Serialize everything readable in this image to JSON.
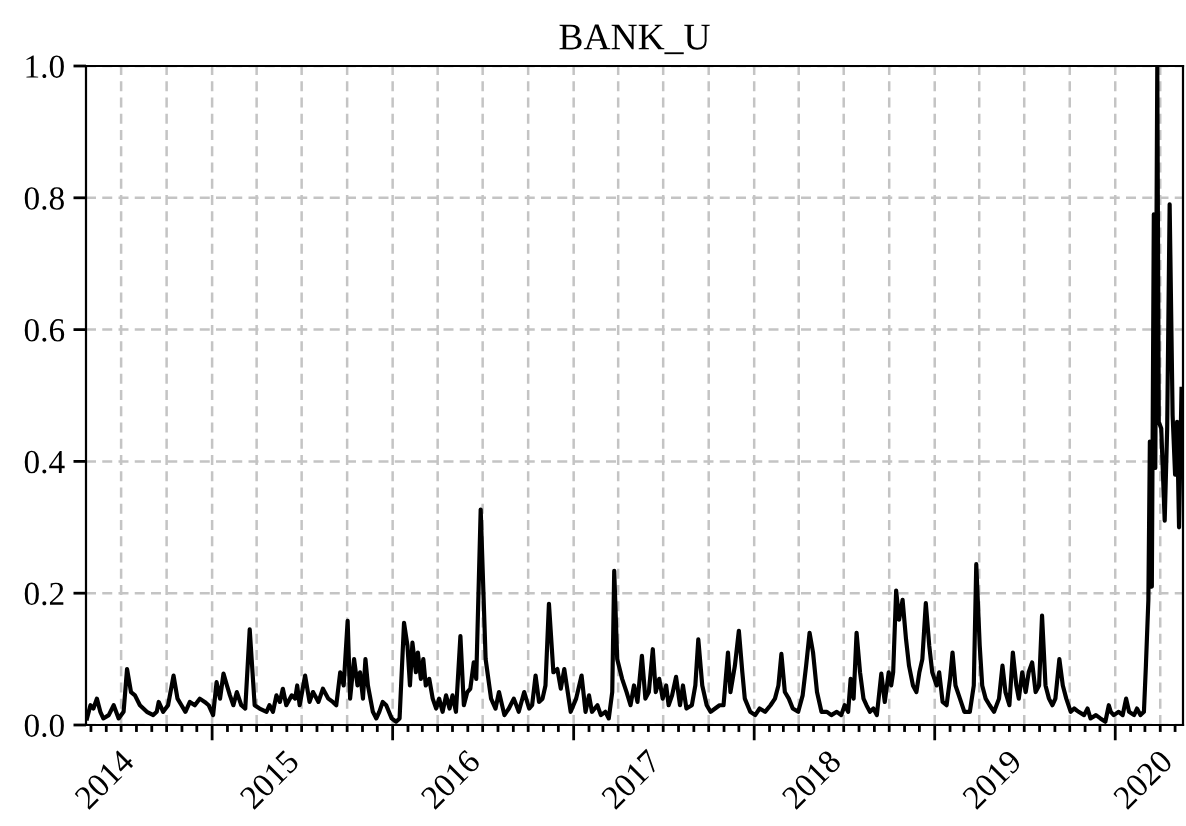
{
  "chart_data": {
    "type": "line",
    "title": "BANK_U",
    "x": [
      "2014-04-23",
      "2014-04-30",
      "2014-05-06",
      "2014-05-13",
      "2014-05-20",
      "2014-05-26",
      "2014-06-06",
      "2014-06-16",
      "2014-06-26",
      "2014-07-06",
      "2014-07-13",
      "2014-07-21",
      "2014-07-29",
      "2014-08-08",
      "2014-08-22",
      "2014-09-04",
      "2014-09-11",
      "2014-09-15",
      "2014-09-24",
      "2014-10-04",
      "2014-10-15",
      "2014-10-23",
      "2014-10-31",
      "2014-11-08",
      "2014-11-17",
      "2014-11-27",
      "2014-12-07",
      "2014-12-17",
      "2014-12-25",
      "2015-01-03",
      "2015-01-10",
      "2015-01-17",
      "2015-01-24",
      "2015-01-31",
      "2015-02-06",
      "2015-02-13",
      "2015-02-20",
      "2015-03-01",
      "2015-03-09",
      "2015-03-18",
      "2015-03-28",
      "2015-04-07",
      "2015-04-21",
      "2015-04-27",
      "2015-05-04",
      "2015-05-11",
      "2015-05-18",
      "2015-05-24",
      "2015-05-31",
      "2015-06-11",
      "2015-06-18",
      "2015-06-22",
      "2015-06-27",
      "2015-07-08",
      "2015-07-17",
      "2015-07-24",
      "2015-08-04",
      "2015-08-13",
      "2015-08-24",
      "2015-09-02",
      "2015-09-09",
      "2015-09-17",
      "2015-09-24",
      "2015-10-02",
      "2015-10-07",
      "2015-10-15",
      "2015-10-22",
      "2015-10-27",
      "2015-11-02",
      "2015-11-07",
      "2015-11-12",
      "2015-11-22",
      "2015-11-29",
      "2015-12-05",
      "2015-12-12",
      "2015-12-19",
      "2015-12-30",
      "2016-01-08",
      "2016-01-15",
      "2016-01-24",
      "2016-01-31",
      "2016-02-05",
      "2016-02-10",
      "2016-02-17",
      "2016-02-21",
      "2016-02-27",
      "2016-03-03",
      "2016-03-08",
      "2016-03-15",
      "2016-03-22",
      "2016-03-29",
      "2016-04-04",
      "2016-04-11",
      "2016-04-18",
      "2016-04-25",
      "2016-05-01",
      "2016-05-08",
      "2016-05-17",
      "2016-05-24",
      "2016-05-31",
      "2016-06-06",
      "2016-06-13",
      "2016-06-18",
      "2016-06-27",
      "2016-07-07",
      "2016-07-18",
      "2016-07-27",
      "2016-08-03",
      "2016-08-14",
      "2016-08-23",
      "2016-09-02",
      "2016-09-12",
      "2016-09-23",
      "2016-10-03",
      "2016-10-09",
      "2016-10-16",
      "2016-10-23",
      "2016-10-30",
      "2016-11-05",
      "2016-11-12",
      "2016-11-21",
      "2016-11-29",
      "2016-12-06",
      "2016-12-13",
      "2016-12-26",
      "2017-01-06",
      "2017-01-17",
      "2017-01-25",
      "2017-02-01",
      "2017-02-07",
      "2017-02-18",
      "2017-02-25",
      "2017-03-06",
      "2017-03-13",
      "2017-03-20",
      "2017-03-24",
      "2017-03-30",
      "2017-04-09",
      "2017-04-18",
      "2017-04-26",
      "2017-05-03",
      "2017-05-10",
      "2017-05-19",
      "2017-05-26",
      "2017-06-02",
      "2017-06-10",
      "2017-06-16",
      "2017-06-23",
      "2017-06-30",
      "2017-07-07",
      "2017-07-12",
      "2017-07-19",
      "2017-07-27",
      "2017-08-04",
      "2017-08-10",
      "2017-08-17",
      "2017-08-28",
      "2017-09-04",
      "2017-09-10",
      "2017-09-18",
      "2017-09-27",
      "2017-10-05",
      "2017-10-14",
      "2017-10-23",
      "2017-10-31",
      "2017-11-09",
      "2017-11-14",
      "2017-11-23",
      "2017-12-01",
      "2017-12-08",
      "2017-12-13",
      "2017-12-24",
      "2018-01-03",
      "2018-01-12",
      "2018-01-23",
      "2018-02-03",
      "2018-02-12",
      "2018-02-19",
      "2018-02-25",
      "2018-03-04",
      "2018-03-12",
      "2018-03-20",
      "2018-03-31",
      "2018-04-09",
      "2018-04-16",
      "2018-04-23",
      "2018-04-30",
      "2018-05-08",
      "2018-05-17",
      "2018-05-28",
      "2018-06-06",
      "2018-06-17",
      "2018-06-26",
      "2018-07-03",
      "2018-07-10",
      "2018-07-15",
      "2018-07-21",
      "2018-07-27",
      "2018-08-03",
      "2018-08-10",
      "2018-08-16",
      "2018-08-23",
      "2018-08-30",
      "2018-09-06",
      "2018-09-15",
      "2018-09-22",
      "2018-09-30",
      "2018-10-05",
      "2018-10-09",
      "2018-10-15",
      "2018-10-21",
      "2018-10-28",
      "2018-11-04",
      "2018-11-10",
      "2018-11-18",
      "2018-11-25",
      "2018-12-01",
      "2018-12-07",
      "2018-12-14",
      "2018-12-21",
      "2018-12-27",
      "2019-01-05",
      "2019-01-10",
      "2019-01-17",
      "2019-01-25",
      "2019-02-01",
      "2019-02-06",
      "2019-02-12",
      "2019-02-21",
      "2019-03-02",
      "2019-03-13",
      "2019-03-21",
      "2019-03-26",
      "2019-04-02",
      "2019-04-07",
      "2019-04-14",
      "2019-04-22",
      "2019-05-01",
      "2019-05-11",
      "2019-05-18",
      "2019-05-24",
      "2019-06-01",
      "2019-06-08",
      "2019-06-15",
      "2019-06-20",
      "2019-06-27",
      "2019-07-04",
      "2019-07-10",
      "2019-07-17",
      "2019-07-24",
      "2019-07-31",
      "2019-08-06",
      "2019-08-13",
      "2019-08-20",
      "2019-08-27",
      "2019-09-02",
      "2019-09-10",
      "2019-09-17",
      "2019-09-24",
      "2019-10-03",
      "2019-10-10",
      "2019-10-19",
      "2019-10-30",
      "2019-11-06",
      "2019-11-12",
      "2019-11-23",
      "2019-12-02",
      "2019-12-12",
      "2019-12-19",
      "2019-12-23",
      "2019-12-29",
      "2020-01-08",
      "2020-01-16",
      "2020-01-23",
      "2020-01-29",
      "2020-02-08",
      "2020-02-14",
      "2020-02-21",
      "2020-02-28",
      "2020-03-03",
      "2020-03-08",
      "2020-03-11",
      "2020-03-15",
      "2020-03-19",
      "2020-03-22",
      "2020-03-26",
      "2020-03-29",
      "2020-04-03",
      "2020-04-10",
      "2020-04-15",
      "2020-04-20",
      "2020-04-26",
      "2020-05-01",
      "2020-05-05",
      "2020-05-09",
      "2020-05-14"
    ],
    "series": [
      {
        "color": "#000000",
        "values": [
          0.01,
          0.03,
          0.025,
          0.04,
          0.02,
          0.01,
          0.015,
          0.03,
          0.01,
          0.02,
          0.085,
          0.05,
          0.045,
          0.03,
          0.02,
          0.015,
          0.02,
          0.035,
          0.02,
          0.03,
          0.075,
          0.04,
          0.03,
          0.02,
          0.035,
          0.03,
          0.04,
          0.035,
          0.03,
          0.015,
          0.065,
          0.04,
          0.078,
          0.06,
          0.045,
          0.03,
          0.05,
          0.03,
          0.025,
          0.145,
          0.03,
          0.025,
          0.02,
          0.03,
          0.02,
          0.045,
          0.035,
          0.055,
          0.03,
          0.045,
          0.04,
          0.06,
          0.03,
          0.075,
          0.035,
          0.05,
          0.035,
          0.055,
          0.04,
          0.035,
          0.03,
          0.08,
          0.06,
          0.158,
          0.04,
          0.1,
          0.06,
          0.08,
          0.04,
          0.1,
          0.06,
          0.02,
          0.01,
          0.02,
          0.035,
          0.03,
          0.01,
          0.005,
          0.01,
          0.155,
          0.12,
          0.06,
          0.125,
          0.08,
          0.11,
          0.07,
          0.1,
          0.06,
          0.07,
          0.04,
          0.025,
          0.04,
          0.02,
          0.045,
          0.025,
          0.045,
          0.02,
          0.135,
          0.03,
          0.05,
          0.055,
          0.095,
          0.07,
          0.327,
          0.1,
          0.04,
          0.025,
          0.05,
          0.015,
          0.025,
          0.04,
          0.02,
          0.05,
          0.025,
          0.03,
          0.075,
          0.035,
          0.04,
          0.06,
          0.184,
          0.08,
          0.085,
          0.055,
          0.085,
          0.02,
          0.04,
          0.075,
          0.02,
          0.045,
          0.02,
          0.03,
          0.015,
          0.02,
          0.01,
          0.05,
          0.234,
          0.1,
          0.07,
          0.05,
          0.03,
          0.06,
          0.035,
          0.105,
          0.04,
          0.05,
          0.115,
          0.05,
          0.07,
          0.04,
          0.06,
          0.03,
          0.045,
          0.073,
          0.03,
          0.06,
          0.025,
          0.03,
          0.06,
          0.13,
          0.06,
          0.03,
          0.02,
          0.025,
          0.03,
          0.03,
          0.11,
          0.05,
          0.09,
          0.143,
          0.08,
          0.04,
          0.02,
          0.015,
          0.025,
          0.02,
          0.03,
          0.04,
          0.06,
          0.108,
          0.05,
          0.04,
          0.025,
          0.02,
          0.045,
          0.09,
          0.14,
          0.11,
          0.05,
          0.02,
          0.02,
          0.015,
          0.02,
          0.015,
          0.03,
          0.02,
          0.07,
          0.04,
          0.14,
          0.08,
          0.04,
          0.03,
          0.02,
          0.025,
          0.015,
          0.078,
          0.035,
          0.08,
          0.06,
          0.08,
          0.204,
          0.16,
          0.19,
          0.13,
          0.09,
          0.06,
          0.05,
          0.08,
          0.1,
          0.185,
          0.12,
          0.08,
          0.06,
          0.08,
          0.035,
          0.03,
          0.07,
          0.11,
          0.06,
          0.04,
          0.02,
          0.02,
          0.06,
          0.244,
          0.12,
          0.06,
          0.04,
          0.03,
          0.02,
          0.04,
          0.09,
          0.05,
          0.03,
          0.11,
          0.06,
          0.04,
          0.08,
          0.05,
          0.08,
          0.095,
          0.05,
          0.06,
          0.166,
          0.06,
          0.04,
          0.03,
          0.04,
          0.1,
          0.06,
          0.04,
          0.02,
          0.025,
          0.02,
          0.015,
          0.025,
          0.01,
          0.015,
          0.01,
          0.005,
          0.03,
          0.02,
          0.015,
          0.02,
          0.015,
          0.04,
          0.02,
          0.015,
          0.025,
          0.015,
          0.02,
          0.09,
          0.19,
          0.43,
          0.21,
          0.775,
          0.39,
          1.0,
          0.46,
          0.45,
          0.31,
          0.45,
          0.79,
          0.47,
          0.38,
          0.46,
          0.3,
          0.51
        ]
      }
    ],
    "xlim": [
      "2014-04-21",
      "2020-05-17"
    ],
    "ylim": [
      0,
      1.0
    ],
    "xticks": [
      {
        "value": "2014-05-01",
        "label": null
      },
      {
        "value": "2014-06-01",
        "label": "2014"
      },
      {
        "value": "2014-07-01",
        "label": null
      },
      {
        "value": "2014-08-01",
        "label": null
      },
      {
        "value": "2014-09-01",
        "label": null
      },
      {
        "value": "2014-10-01",
        "label": null
      },
      {
        "value": "2014-11-01",
        "label": null
      },
      {
        "value": "2014-12-01",
        "label": null
      },
      {
        "value": "2015-01-01",
        "label": null
      },
      {
        "value": "2015-02-01",
        "label": null
      },
      {
        "value": "2015-03-01",
        "label": null
      },
      {
        "value": "2015-04-01",
        "label": null
      },
      {
        "value": "2015-05-01",
        "label": "2015"
      },
      {
        "value": "2015-06-01",
        "label": null
      },
      {
        "value": "2015-07-01",
        "label": null
      },
      {
        "value": "2015-08-01",
        "label": null
      },
      {
        "value": "2015-09-01",
        "label": null
      },
      {
        "value": "2015-10-01",
        "label": null
      },
      {
        "value": "2015-11-01",
        "label": null
      },
      {
        "value": "2015-12-01",
        "label": null
      },
      {
        "value": "2016-01-01",
        "label": null
      },
      {
        "value": "2016-02-01",
        "label": null
      },
      {
        "value": "2016-03-01",
        "label": null
      },
      {
        "value": "2016-04-01",
        "label": null
      },
      {
        "value": "2016-05-01",
        "label": "2016"
      },
      {
        "value": "2016-06-01",
        "label": null
      },
      {
        "value": "2016-07-01",
        "label": null
      },
      {
        "value": "2016-08-01",
        "label": null
      },
      {
        "value": "2016-09-01",
        "label": null
      },
      {
        "value": "2016-10-01",
        "label": null
      },
      {
        "value": "2016-11-01",
        "label": null
      },
      {
        "value": "2016-12-01",
        "label": null
      },
      {
        "value": "2017-01-01",
        "label": null
      },
      {
        "value": "2017-02-01",
        "label": null
      },
      {
        "value": "2017-03-01",
        "label": null
      },
      {
        "value": "2017-04-01",
        "label": null
      },
      {
        "value": "2017-05-01",
        "label": "2017"
      },
      {
        "value": "2017-06-01",
        "label": null
      },
      {
        "value": "2017-07-01",
        "label": null
      },
      {
        "value": "2017-08-01",
        "label": null
      },
      {
        "value": "2017-09-01",
        "label": null
      },
      {
        "value": "2017-10-01",
        "label": null
      },
      {
        "value": "2017-11-01",
        "label": null
      },
      {
        "value": "2017-12-01",
        "label": null
      },
      {
        "value": "2018-01-01",
        "label": null
      },
      {
        "value": "2018-02-01",
        "label": null
      },
      {
        "value": "2018-03-01",
        "label": null
      },
      {
        "value": "2018-04-01",
        "label": null
      },
      {
        "value": "2018-05-01",
        "label": "2018"
      },
      {
        "value": "2018-06-01",
        "label": null
      },
      {
        "value": "2018-07-01",
        "label": null
      },
      {
        "value": "2018-08-01",
        "label": null
      },
      {
        "value": "2018-09-01",
        "label": null
      },
      {
        "value": "2018-10-01",
        "label": null
      },
      {
        "value": "2018-11-01",
        "label": null
      },
      {
        "value": "2018-12-01",
        "label": null
      },
      {
        "value": "2019-01-01",
        "label": null
      },
      {
        "value": "2019-02-01",
        "label": null
      },
      {
        "value": "2019-03-01",
        "label": null
      },
      {
        "value": "2019-04-01",
        "label": null
      },
      {
        "value": "2019-05-01",
        "label": "2019"
      },
      {
        "value": "2019-06-01",
        "label": null
      },
      {
        "value": "2019-07-01",
        "label": null
      },
      {
        "value": "2019-08-01",
        "label": null
      },
      {
        "value": "2019-09-01",
        "label": null
      },
      {
        "value": "2019-10-01",
        "label": null
      },
      {
        "value": "2019-11-01",
        "label": null
      },
      {
        "value": "2019-12-01",
        "label": null
      },
      {
        "value": "2020-01-01",
        "label": null
      },
      {
        "value": "2020-02-01",
        "label": null
      },
      {
        "value": "2020-03-01",
        "label": "2020"
      },
      {
        "value": "2020-04-01",
        "label": null
      },
      {
        "value": "2020-05-01",
        "label": null
      }
    ],
    "yticks": [
      {
        "value": 0,
        "label": "0.0"
      },
      0.2,
      0.4,
      0.6,
      0.8,
      {
        "value": 1.0,
        "label": "1.0"
      }
    ],
    "grid": true,
    "line_style": "solid"
  }
}
